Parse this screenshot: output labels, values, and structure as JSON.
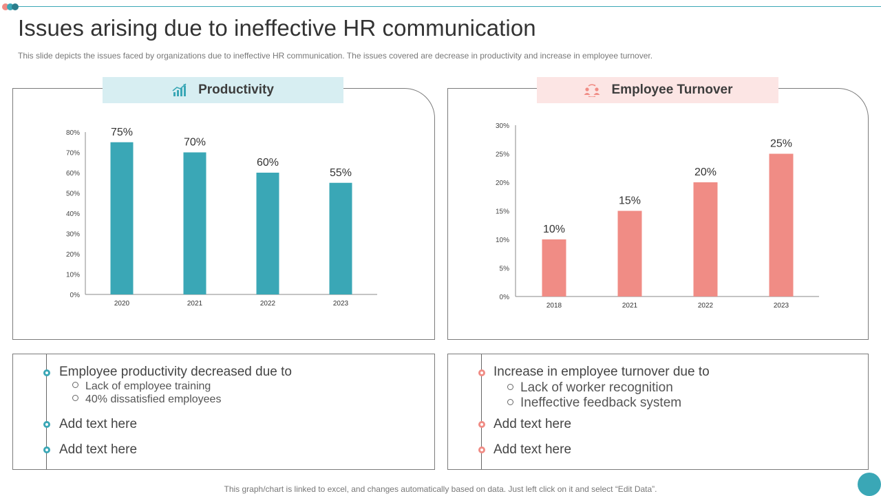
{
  "title": "Issues arising due to ineffective HR communication",
  "subtitle": "This slide depicts the issues faced by organizations due to ineffective HR communication. The issues covered are decrease in productivity and increase in employee turnover.",
  "footer": "This graph/chart is linked to excel,  and changes automatically based on data. Just left click on it and select “Edit Data”.",
  "colors": {
    "accent_teal": "#3aa7b6",
    "accent_salmon": "#f08c85",
    "header_teal_bg": "#d7eef2",
    "header_salmon_bg": "#fce5e4"
  },
  "productivity": {
    "header": "Productivity",
    "icon": "growth-chart-icon"
  },
  "turnover": {
    "header": "Employee Turnover",
    "icon": "people-exchange-icon"
  },
  "chart_data": [
    {
      "type": "bar",
      "categories": [
        "2020",
        "2021",
        "2022",
        "2023"
      ],
      "values": [
        75,
        70,
        60,
        55
      ],
      "value_labels": [
        "75%",
        "70%",
        "60%",
        "55%"
      ],
      "yticks": [
        "0%",
        "10%",
        "20%",
        "30%",
        "40%",
        "50%",
        "60%",
        "70%",
        "80%"
      ],
      "ylim": [
        0,
        80
      ],
      "color": "#3aa7b6",
      "title": "Productivity",
      "grid": false
    },
    {
      "type": "bar",
      "categories": [
        "2018",
        "2021",
        "2022",
        "2023"
      ],
      "values": [
        10,
        15,
        20,
        25
      ],
      "value_labels": [
        "10%",
        "15%",
        "20%",
        "25%"
      ],
      "yticks": [
        "0%",
        "5%",
        "10%",
        "15%",
        "20%",
        "25%",
        "30%"
      ],
      "ylim": [
        0,
        30
      ],
      "color": "#f08c85",
      "title": "Employee Turnover",
      "grid": false
    }
  ],
  "left_text": {
    "main": "Employee productivity decreased due to",
    "subs": [
      "Lack of employee training",
      "40% dissatisfied employees"
    ],
    "extra": [
      "Add text here",
      "Add text here"
    ]
  },
  "right_text": {
    "main": "Increase in employee turnover due to",
    "subs": [
      "Lack of worker recognition",
      "Ineffective feedback system"
    ],
    "extra": [
      "Add text here",
      "Add text here"
    ]
  }
}
